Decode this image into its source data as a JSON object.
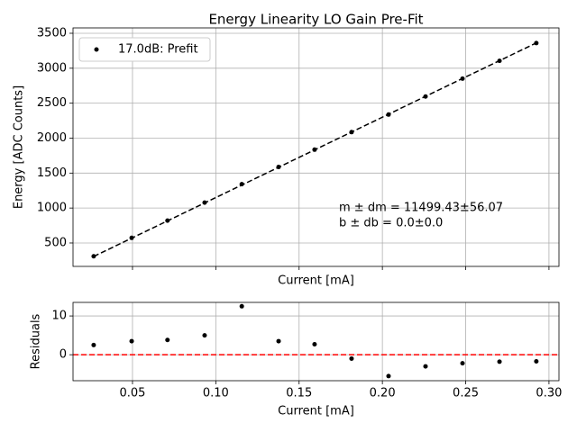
{
  "chart_data": [
    {
      "type": "scatter",
      "title": "Energy Linearity LO Gain Pre-Fit",
      "xlabel": "Current [mA]",
      "ylabel": "Energy [ADC Counts]",
      "x": [
        0.0267,
        0.0495,
        0.071,
        0.0933,
        0.1156,
        0.1377,
        0.1593,
        0.1815,
        0.2037,
        0.2259,
        0.2481,
        0.2703,
        0.2924
      ],
      "series": [
        {
          "name": "17.0dB: Prefit",
          "color": "#000000",
          "style": "points",
          "values": [
            310,
            573,
            820,
            1078,
            1342,
            1587,
            1835,
            2086,
            2337,
            2595,
            2851,
            3106,
            3360
          ]
        },
        {
          "color": "#000000",
          "style": "dashed",
          "values": [
            307,
            569,
            816,
            1073,
            1329,
            1583,
            1832,
            2087,
            2342,
            2598,
            2853,
            3108,
            3362
          ]
        }
      ],
      "annotations": [
        "m ± dm = 11499.43±56.07",
        "b ± db = 0.0±0.0"
      ],
      "xlim": [
        0.0143,
        0.306
      ],
      "xticks": [
        0.05,
        0.1,
        0.15,
        0.2,
        0.25,
        0.3
      ],
      "xtick_labels": false,
      "ylim": [
        165,
        3577
      ],
      "yticks": [
        500,
        1000,
        1500,
        2000,
        2500,
        3000,
        3500
      ],
      "grid": true,
      "legend": "upper left"
    },
    {
      "type": "scatter",
      "xlabel": "Current [mA]",
      "ylabel": "Residuals",
      "x": [
        0.0267,
        0.0495,
        0.071,
        0.0933,
        0.1156,
        0.1377,
        0.1593,
        0.1815,
        0.2037,
        0.2259,
        0.2481,
        0.2703,
        0.2924
      ],
      "series": [
        {
          "color": "#000000",
          "style": "points",
          "values": [
            2.5,
            3.5,
            3.8,
            5,
            12.5,
            3.5,
            2.7,
            -1,
            -5.5,
            -3,
            -2.2,
            -1.8,
            -1.7
          ]
        }
      ],
      "hline": 0,
      "hline_color": "#ff0000",
      "xlim": [
        0.0143,
        0.306
      ],
      "xticks": [
        0.05,
        {
          "value": 0.1,
          "label": "0.10"
        },
        0.15,
        {
          "value": 0.2,
          "label": "0.20"
        },
        0.25,
        {
          "value": 0.3,
          "label": "0.30"
        }
      ],
      "ylim": [
        -6.7,
        13.5
      ],
      "yticks": [
        0,
        10
      ],
      "grid": true
    }
  ]
}
